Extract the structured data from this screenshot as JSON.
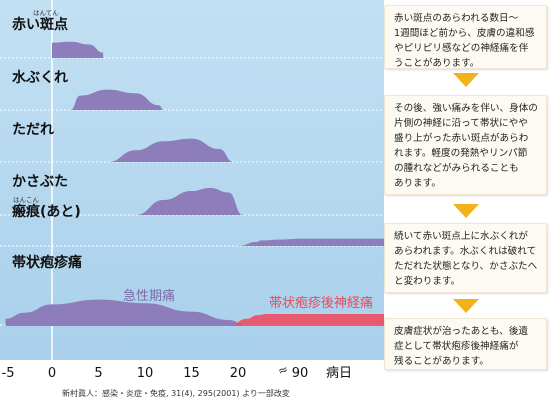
{
  "chart_data": {
    "type": "area",
    "rows": [
      {
        "label": "赤い斑点",
        "ruby": "はんてん"
      },
      {
        "label": "水ぶくれ",
        "ruby": ""
      },
      {
        "label": "ただれ",
        "ruby": ""
      },
      {
        "label": "かさぶた",
        "ruby": ""
      },
      {
        "label": "瘢痕(あと)",
        "ruby": "はんこん"
      },
      {
        "label": "帯状疱疹痛",
        "ruby": ""
      }
    ],
    "series": [
      {
        "row": 0,
        "x": [
          0,
          0,
          2,
          4,
          5.5,
          5.5
        ],
        "y": [
          0,
          0.85,
          0.9,
          0.75,
          0.3,
          0
        ]
      },
      {
        "row": 1,
        "x": [
          2,
          3,
          6,
          9,
          11.5,
          12
        ],
        "y": [
          0,
          0.6,
          0.85,
          0.7,
          0.2,
          0
        ]
      },
      {
        "row": 2,
        "x": [
          6,
          9,
          12,
          15,
          18,
          19.5
        ],
        "y": [
          0,
          0.45,
          0.8,
          0.9,
          0.5,
          0
        ]
      },
      {
        "row": 3,
        "x": [
          9,
          12,
          15,
          17,
          19,
          20.5
        ],
        "y": [
          0,
          0.5,
          0.8,
          0.9,
          0.75,
          0
        ]
      },
      {
        "row": 4,
        "x": [
          20,
          22,
          30,
          60,
          90,
          110
        ],
        "y": [
          0,
          0.25,
          0.35,
          0.4,
          0.45,
          0.45
        ]
      }
    ],
    "pain_series": [
      {
        "name": "急性期痛",
        "color": "#8d7dbb",
        "x": [
          -5,
          -3,
          0,
          5,
          10,
          15,
          19,
          21
        ],
        "y": [
          0.3,
          0.55,
          0.9,
          1.1,
          0.95,
          0.6,
          0.25,
          0
        ]
      },
      {
        "name": "帯状疱疹後神経痛",
        "color": "#ec4f64",
        "x": [
          19,
          21,
          23,
          40,
          70,
          110
        ],
        "y": [
          0,
          0.3,
          0.45,
          0.5,
          0.5,
          0.5
        ]
      }
    ],
    "x_ticks": [
      "-5",
      "0",
      "5",
      "10",
      "15",
      "20",
      "90"
    ],
    "x_tick_values": [
      -5,
      0,
      5,
      10,
      15,
      20,
      90
    ],
    "x_break_symbol": "≈",
    "xlabel": "病日",
    "note": "新村眞人：感染・炎症・免疫, 31(4), 295(2001) より一部改変",
    "colors": {
      "background": "#b6d8ef",
      "area": "#8d7dbb",
      "pain2": "#ec4f64",
      "arrow": "#f2b21a"
    }
  },
  "side_boxes": [
    {
      "lines": [
        "赤い斑点のあらわれる数日～",
        "1週間ほど前から、皮膚の違和感",
        "やピリピリ感などの神経痛を伴",
        "うことがあります。"
      ]
    },
    {
      "lines": [
        "その後、強い痛みを伴い、身体の",
        "片側の神経に沿って帯状にやや",
        "盛り上がった赤い斑点があらわ",
        "れます。軽度の発熱やリンパ節",
        "の腫れなどがみられることも",
        "あります。"
      ]
    },
    {
      "lines": [
        "続いて赤い斑点上に水ぶくれが",
        "あらわれます。水ぶくれは破れて",
        "ただれた状態となり、かさぶたへ",
        "と変わります。"
      ]
    },
    {
      "lines": [
        "皮膚症状が治ったあとも、後遺",
        "症として帯状疱疹後神経痛が",
        "残ることがあります。"
      ]
    }
  ]
}
